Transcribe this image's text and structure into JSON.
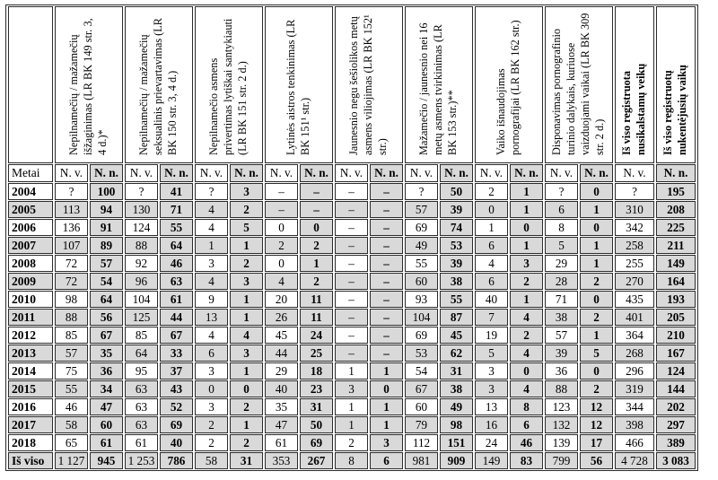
{
  "table": {
    "year_header": "Metai",
    "nv_label": "N. v.",
    "nn_label": "N. n.",
    "colors": {
      "shaded_cell": "#d9d9d9",
      "border": "#2b2b2b",
      "background": "#ffffff"
    },
    "columns": [
      {
        "label": "Nepilnamečių / mažamečių išžaginimas (LR BK 149 str. 3, 4 d.)*",
        "bold": false,
        "subs": [
          "nv",
          "nn"
        ]
      },
      {
        "label": "Nepilnamečių / mažamečių seksualinis prievartavimas (LR BK 150 str. 3, 4 d.)",
        "bold": false,
        "subs": [
          "nv",
          "nn"
        ]
      },
      {
        "label": "Nepilnamečio asmens privertimas lytiškai santykiauti (LR BK 151 str. 2 d.)",
        "bold": false,
        "subs": [
          "nv",
          "nn"
        ]
      },
      {
        "label": "Lytinės aistros tenkinimas (LR BK 151¹ str.)",
        "bold": false,
        "subs": [
          "nv",
          "nn"
        ]
      },
      {
        "label": "Jaunesnio negu šešiolikos metų asmens viliojimas (LR BK 152¹ str.)",
        "bold": false,
        "subs": [
          "nv",
          "nn"
        ]
      },
      {
        "label": "Mažamečio / jaunesnio nei 16 metų asmens tvirkinimas (LR BK 153 str.)**",
        "bold": false,
        "subs": [
          "nv",
          "nn"
        ]
      },
      {
        "label": "Vaiko išnaudojimas pornografijai (LR BK 162 str.)",
        "bold": false,
        "subs": [
          "nv",
          "nn"
        ]
      },
      {
        "label": "Disponavimas pornografinio turinio dalykais, kuriuose vaizduojami vaikai (LR BK 309 str. 2 d.)",
        "bold": false,
        "subs": [
          "nv",
          "nn"
        ]
      },
      {
        "label": "Iš viso registruota nusikalstamų veikų",
        "bold": true,
        "subs": [
          "nv"
        ]
      },
      {
        "label": "Iš viso registruotų nukentėjusių vaikų",
        "bold": true,
        "subs": [
          "nn"
        ]
      }
    ],
    "rows": [
      {
        "year": "2004",
        "shaded": false,
        "values": [
          "?",
          "100",
          "?",
          "41",
          "?",
          "3",
          "–",
          "–",
          "–",
          "–",
          "?",
          "50",
          "2",
          "1",
          "?",
          "0",
          "?",
          "195"
        ]
      },
      {
        "year": "2005",
        "shaded": true,
        "values": [
          "113",
          "94",
          "130",
          "71",
          "4",
          "2",
          "–",
          "–",
          "–",
          "–",
          "57",
          "39",
          "0",
          "1",
          "6",
          "1",
          "310",
          "208"
        ]
      },
      {
        "year": "2006",
        "shaded": false,
        "values": [
          "136",
          "91",
          "124",
          "55",
          "4",
          "5",
          "0",
          "0",
          "–",
          "–",
          "69",
          "74",
          "1",
          "0",
          "8",
          "0",
          "342",
          "225"
        ]
      },
      {
        "year": "2007",
        "shaded": true,
        "values": [
          "107",
          "89",
          "88",
          "64",
          "1",
          "1",
          "2",
          "2",
          "–",
          "–",
          "49",
          "53",
          "6",
          "1",
          "5",
          "1",
          "258",
          "211"
        ]
      },
      {
        "year": "2008",
        "shaded": false,
        "values": [
          "72",
          "57",
          "92",
          "46",
          "3",
          "2",
          "0",
          "1",
          "–",
          "–",
          "55",
          "39",
          "4",
          "3",
          "29",
          "1",
          "255",
          "149"
        ]
      },
      {
        "year": "2009",
        "shaded": true,
        "values": [
          "72",
          "54",
          "96",
          "63",
          "4",
          "3",
          "4",
          "2",
          "–",
          "–",
          "60",
          "38",
          "6",
          "2",
          "28",
          "2",
          "270",
          "164"
        ]
      },
      {
        "year": "2010",
        "shaded": false,
        "values": [
          "98",
          "64",
          "104",
          "61",
          "9",
          "1",
          "20",
          "11",
          "–",
          "–",
          "93",
          "55",
          "40",
          "1",
          "71",
          "0",
          "435",
          "193"
        ]
      },
      {
        "year": "2011",
        "shaded": true,
        "values": [
          "88",
          "56",
          "125",
          "44",
          "13",
          "1",
          "26",
          "11",
          "–",
          "–",
          "104",
          "87",
          "7",
          "4",
          "38",
          "2",
          "401",
          "205"
        ]
      },
      {
        "year": "2012",
        "shaded": false,
        "values": [
          "85",
          "67",
          "85",
          "67",
          "4",
          "4",
          "45",
          "24",
          "–",
          "–",
          "69",
          "45",
          "19",
          "2",
          "57",
          "1",
          "364",
          "210"
        ]
      },
      {
        "year": "2013",
        "shaded": true,
        "values": [
          "57",
          "35",
          "64",
          "33",
          "6",
          "3",
          "44",
          "25",
          "–",
          "–",
          "53",
          "62",
          "5",
          "4",
          "39",
          "5",
          "268",
          "167"
        ]
      },
      {
        "year": "2014",
        "shaded": false,
        "values": [
          "75",
          "36",
          "95",
          "37",
          "3",
          "1",
          "29",
          "18",
          "1",
          "1",
          "54",
          "31",
          "3",
          "0",
          "36",
          "0",
          "296",
          "124"
        ]
      },
      {
        "year": "2015",
        "shaded": true,
        "values": [
          "55",
          "34",
          "63",
          "43",
          "0",
          "0",
          "40",
          "23",
          "3",
          "0",
          "67",
          "38",
          "3",
          "4",
          "88",
          "2",
          "319",
          "144"
        ]
      },
      {
        "year": "2016",
        "shaded": false,
        "values": [
          "46",
          "47",
          "63",
          "52",
          "3",
          "2",
          "35",
          "31",
          "1",
          "1",
          "60",
          "49",
          "13",
          "8",
          "123",
          "12",
          "344",
          "202"
        ]
      },
      {
        "year": "2017",
        "shaded": true,
        "values": [
          "58",
          "60",
          "63",
          "69",
          "2",
          "1",
          "47",
          "50",
          "1",
          "1",
          "79",
          "98",
          "16",
          "6",
          "132",
          "12",
          "398",
          "297"
        ]
      },
      {
        "year": "2018",
        "shaded": false,
        "values": [
          "65",
          "61",
          "61",
          "40",
          "2",
          "2",
          "61",
          "69",
          "2",
          "3",
          "112",
          "151",
          "24",
          "46",
          "139",
          "17",
          "466",
          "389"
        ]
      },
      {
        "year": "Iš viso",
        "shaded": true,
        "is_total": true,
        "values": [
          "1 127",
          "945",
          "1 253",
          "786",
          "58",
          "31",
          "353",
          "267",
          "8",
          "6",
          "981",
          "909",
          "149",
          "83",
          "799",
          "56",
          "4 728",
          "3 083"
        ]
      }
    ]
  }
}
